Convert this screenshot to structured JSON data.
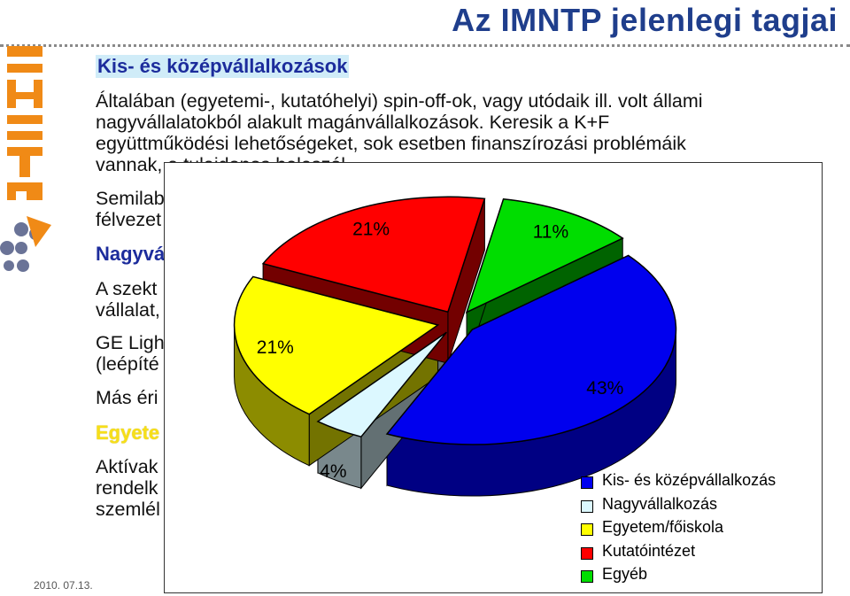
{
  "slide": {
    "title": "Az IMNTP jelenlegi tagjai",
    "date": "2010. 07.13."
  },
  "logo": {
    "text": "IMNTP"
  },
  "body": {
    "section1_heading": "Kis- és középvállalkozások",
    "para1_line1": "Általában (egyetemi-, kutatóhelyi) spin-off-ok, vagy utódaik ill. volt állami",
    "para1_line2": "nagyvállalatokból alakult magánvállalkozások. Keresik a K+F",
    "para1_line3": "együttműködési lehetőségeket, sok esetben finanszírozási problémáik",
    "para1_line4": "vannak, a tulajdonos beleszól.",
    "para2_line1": "Semilab",
    "para2_line2": "félvezet",
    "section2_heading": "Nagyvá",
    "para3_line1": "A szekt",
    "para3_line2": "vállalat,",
    "para4_line1": "GE Ligh",
    "para4_line2": "(leépíté",
    "para5_line1": "Más éri",
    "section3_heading": "Egyete",
    "para6_line1": "Aktívak",
    "para6_line2": "rendelk",
    "para6_line3": "szemlél"
  },
  "colors": {
    "title": "#1f3e8c",
    "kkv": "#0000ee",
    "nagyvallalkozas": "#dcf8ff",
    "egyetem": "#ffff00",
    "kutatointezet": "#ff0000",
    "egyeb": "#00dd00"
  },
  "chart_data": {
    "type": "pie",
    "style": "3d-exploded",
    "legend_position": "bottom-right",
    "categories": [
      "Kis- és középvállalkozás",
      "Nagyvállalkozás",
      "Egyetem/főiskola",
      "Kutatóintézet",
      "Egyéb"
    ],
    "values": [
      43,
      4,
      21,
      21,
      11
    ],
    "labels": [
      "43%",
      "4%",
      "21%",
      "21%",
      "11%"
    ]
  }
}
